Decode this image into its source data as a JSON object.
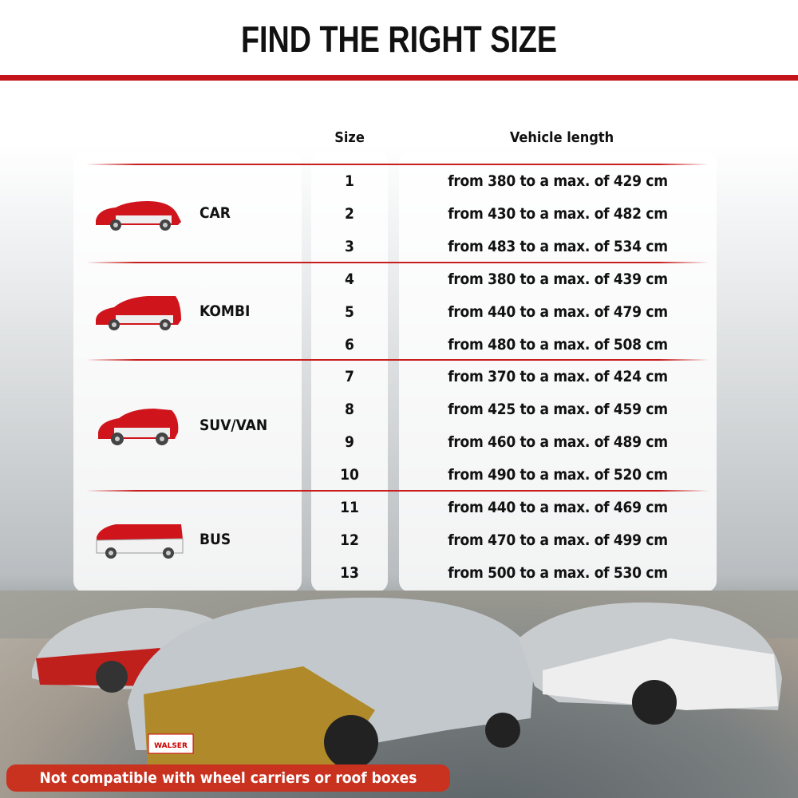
{
  "title": "FIND THE RIGHT SIZE",
  "table": {
    "headers": {
      "size": "Size",
      "length": "Vehicle length"
    },
    "categories": [
      {
        "name": "CAR",
        "icon": "car-icon",
        "rows": [
          {
            "size": "1",
            "length": "from 380 to a max. of 429 cm"
          },
          {
            "size": "2",
            "length": "from 430 to a max. of 482 cm"
          },
          {
            "size": "3",
            "length": "from 483 to a max. of 534 cm"
          }
        ]
      },
      {
        "name": "KOMBI",
        "icon": "estate-car-icon",
        "rows": [
          {
            "size": "4",
            "length": "from 380 to a max. of 439 cm"
          },
          {
            "size": "5",
            "length": "from 440 to a max. of 479 cm"
          },
          {
            "size": "6",
            "length": "from 480 to a max. of 508 cm"
          }
        ]
      },
      {
        "name": "SUV/VAN",
        "icon": "suv-icon",
        "rows": [
          {
            "size": "7",
            "length": "from 370 to a max. of 424 cm"
          },
          {
            "size": "8",
            "length": "from 425 to a max. of 459 cm"
          },
          {
            "size": "9",
            "length": "from 460 to a max. of 489 cm"
          },
          {
            "size": "10",
            "length": "from 490 to a max. of 520 cm"
          }
        ]
      },
      {
        "name": "BUS",
        "icon": "bus-icon",
        "rows": [
          {
            "size": "11",
            "length": "from 440 to a max. of 469 cm"
          },
          {
            "size": "12",
            "length": "from 470 to a max. of 499 cm"
          },
          {
            "size": "13",
            "length": "from 500 to a max. of 530 cm"
          }
        ]
      }
    ]
  },
  "photo": {
    "plate_text": "WALSER"
  },
  "notice": "Not compatible with wheel carriers or roof boxes",
  "colors": {
    "accent": "#c4141b",
    "banner": "#c8321f"
  }
}
